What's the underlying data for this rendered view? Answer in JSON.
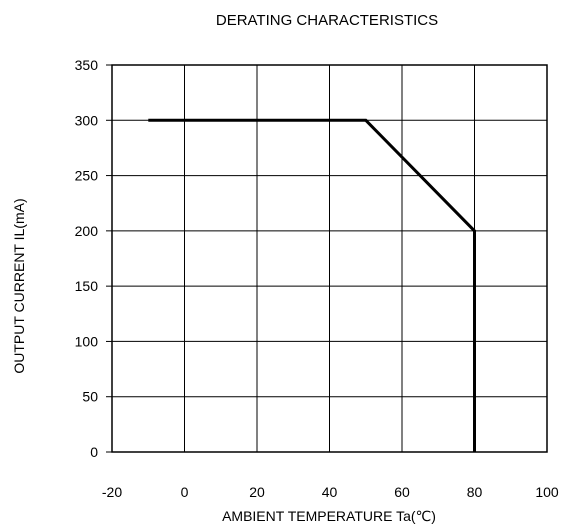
{
  "chart_data": {
    "type": "line",
    "title": "DERATING CHARACTERISTICS",
    "xlabel": "AMBIENT TEMPERATURE Ta(℃)",
    "ylabel": "OUTPUT CURRENT IL(mA)",
    "xlim": [
      -20,
      100
    ],
    "ylim": [
      0,
      350
    ],
    "x_ticks": [
      -20,
      0,
      20,
      40,
      60,
      80,
      100
    ],
    "y_ticks": [
      0,
      50,
      100,
      150,
      200,
      250,
      300,
      350
    ],
    "grid": true,
    "legend": "none",
    "series": [
      {
        "points": [
          [
            -10,
            300
          ],
          [
            50,
            300
          ],
          [
            80,
            200
          ],
          [
            80,
            0
          ]
        ],
        "color": "#000000"
      }
    ]
  }
}
